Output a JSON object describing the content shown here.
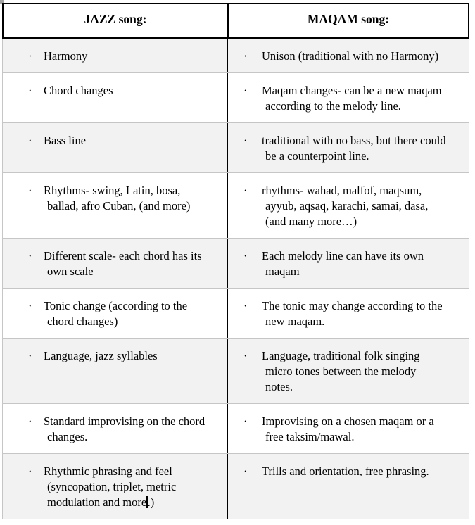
{
  "table": {
    "bullet": "·",
    "headers": {
      "left": "JAZZ song:",
      "right": "MAQAM song:"
    },
    "rows": [
      {
        "left": "Harmony",
        "right": "Unison (traditional with no Harmony)"
      },
      {
        "left": "Chord changes",
        "right": "Maqam changes- can be a new maqam\naccording to the melody line."
      },
      {
        "left": "Bass line",
        "right": "traditional with no bass, but there could\nbe a counterpoint line."
      },
      {
        "left": "Rhythms- swing, Latin, bosa,\nballad, afro Cuban, (and more)",
        "right": "rhythms- wahad, malfof, maqsum,\nayyub, aqsaq, karachi, samai, dasa,\n(and many more…)"
      },
      {
        "left": "Different scale- each chord has its\nown scale",
        "right": "Each melody line can have its own\nmaqam"
      },
      {
        "left": "Tonic change (according to the\nchord changes)",
        "right": "The tonic may change according to the\nnew maqam."
      },
      {
        "left": "Language, jazz syllables",
        "right": "Language, traditional folk singing\nmicro tones between the melody\nnotes."
      },
      {
        "left": "Standard improvising on the chord\nchanges.",
        "right": "Improvising on a chosen maqam or a\nfree taksim/mawal."
      },
      {
        "left_pre": "Rhythmic phrasing and feel\n(syncopation, triplet, metric\nmodulation and more",
        "left_post": ".)",
        "right": "Trills and orientation, free phrasing."
      }
    ]
  }
}
